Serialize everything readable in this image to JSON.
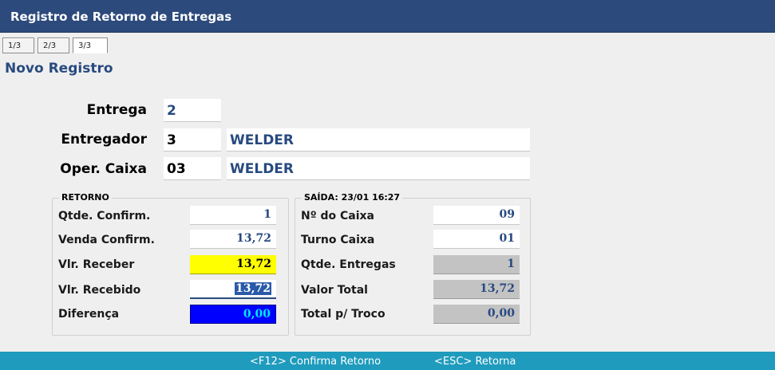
{
  "window": {
    "title": "Registro de Retorno de Entregas"
  },
  "tabs": [
    "1/3",
    "2/3",
    "3/3"
  ],
  "subtitle": "Novo Registro",
  "header": {
    "entrega": {
      "label": "Entrega",
      "value": "2"
    },
    "entregador": {
      "label": "Entregador",
      "code": "3",
      "name": "WELDER"
    },
    "oper_caixa": {
      "label": "Oper. Caixa",
      "code": "03",
      "name": "WELDER"
    }
  },
  "retorno": {
    "title": "RETORNO",
    "rows": [
      {
        "label": "Qtde. Confirm.",
        "value": "1"
      },
      {
        "label": "Venda Confirm.",
        "value": "13,72"
      },
      {
        "label": "Vlr. Receber",
        "value": "13,72"
      },
      {
        "label": "Vlr. Recebido",
        "value": "13,72"
      },
      {
        "label": "Diferença",
        "value": "0,00"
      }
    ]
  },
  "saida": {
    "title": "SAÍDA: 23/01 16:27",
    "rows": [
      {
        "label": "Nº do Caixa",
        "value": "09"
      },
      {
        "label": "Turno Caixa",
        "value": "01"
      },
      {
        "label": "Qtde. Entregas",
        "value": "1"
      },
      {
        "label": "Valor Total",
        "value": "13,72"
      },
      {
        "label": "Total p/ Troco",
        "value": "0,00"
      }
    ]
  },
  "footer": {
    "confirm": "<F12> Confirma Retorno",
    "back": "<ESC> Retorna"
  },
  "colors": {
    "titlebar": "#2c4a7c",
    "footer": "#1f9bbd",
    "highlight_yellow": "#ffff00",
    "highlight_blue": "#0000ff"
  }
}
